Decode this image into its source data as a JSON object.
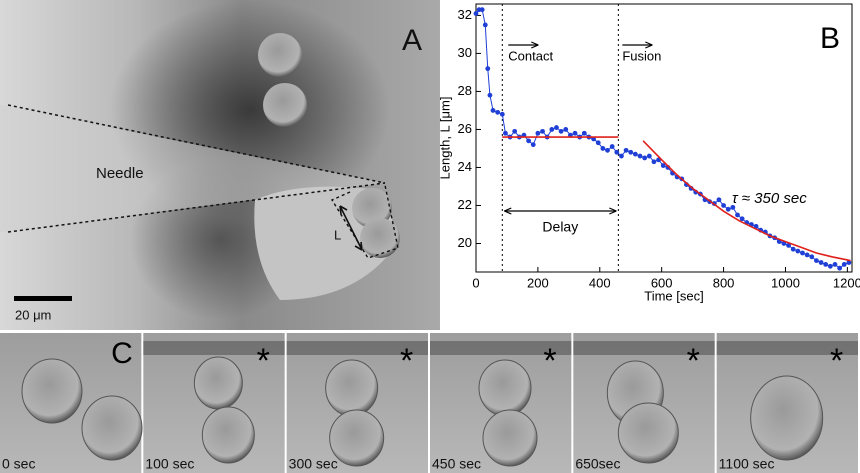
{
  "panel_a": {
    "label": "A",
    "needle_label": "Needle",
    "length_label": "L",
    "scale_bar": "20 μm"
  },
  "chart_data": {
    "type": "scatter",
    "label": "B",
    "xlabel": "Time [sec]",
    "ylabel": "Length, L [μm]",
    "xlim": [
      0,
      1215
    ],
    "ylim": [
      18.5,
      32.6
    ],
    "xticks": [
      0,
      200,
      400,
      600,
      800,
      1000,
      1200
    ],
    "yticks": [
      20,
      22,
      24,
      26,
      28,
      30,
      32
    ],
    "vlines": [
      85,
      460
    ],
    "contact_label": "Contact",
    "fusion_label": "Fusion",
    "delay_label": "Delay",
    "tau_label": "τ ≈ 350 sec",
    "series": [
      {
        "color": "#1f3fd6",
        "markers": true,
        "x": [
          0,
          10,
          20,
          30,
          38,
          45,
          55,
          70,
          85,
          95,
          110,
          125,
          140,
          155,
          170,
          185,
          200,
          215,
          230,
          245,
          260,
          275,
          290,
          305,
          320,
          335,
          350,
          365,
          380,
          395,
          410,
          425,
          440,
          455,
          470,
          485,
          500,
          515,
          530,
          545,
          560,
          575,
          590,
          605,
          620,
          635,
          650,
          665,
          680,
          695,
          710,
          725,
          740,
          755,
          770,
          785,
          800,
          815,
          830,
          845,
          860,
          875,
          890,
          905,
          920,
          935,
          950,
          965,
          980,
          995,
          1010,
          1025,
          1040,
          1055,
          1070,
          1085,
          1100,
          1115,
          1130,
          1145,
          1160,
          1175,
          1190,
          1205
        ],
        "values": [
          32.1,
          32.3,
          32.3,
          31.5,
          29.2,
          27.8,
          27.0,
          26.9,
          26.8,
          25.8,
          25.6,
          25.9,
          25.6,
          25.7,
          25.4,
          25.2,
          25.8,
          25.9,
          25.6,
          26.0,
          26.1,
          25.9,
          26.0,
          25.7,
          25.8,
          25.6,
          25.8,
          25.6,
          25.5,
          25.3,
          25.0,
          24.9,
          25.1,
          24.8,
          24.6,
          24.9,
          24.8,
          24.7,
          24.6,
          24.5,
          24.6,
          24.3,
          24.4,
          24.1,
          24.0,
          23.7,
          23.5,
          23.4,
          23.1,
          22.9,
          22.7,
          22.6,
          22.3,
          22.2,
          22.1,
          22.3,
          22.0,
          21.8,
          21.9,
          21.5,
          21.3,
          21.1,
          21.0,
          20.9,
          20.7,
          20.6,
          20.4,
          20.3,
          20.1,
          20.0,
          19.9,
          19.7,
          19.6,
          19.5,
          19.4,
          19.3,
          19.1,
          19.0,
          18.9,
          18.8,
          18.9,
          18.7,
          18.9,
          19.0
        ]
      },
      {
        "color": "#e0201b",
        "markers": false,
        "x": [
          85,
          460
        ],
        "values": [
          25.6,
          25.6
        ]
      },
      {
        "color": "#e0201b",
        "markers": false,
        "x": [
          540,
          600,
          650,
          700,
          750,
          800,
          850,
          900,
          950,
          1000,
          1050,
          1100,
          1150,
          1210
        ],
        "values": [
          25.4,
          24.4,
          23.6,
          22.9,
          22.3,
          21.7,
          21.2,
          20.8,
          20.4,
          20.1,
          19.8,
          19.5,
          19.3,
          19.1
        ]
      }
    ]
  },
  "panel_c": {
    "label": "C",
    "frames": [
      {
        "time": "0 sec"
      },
      {
        "time": "100 sec",
        "marker": "*"
      },
      {
        "time": "300 sec",
        "marker": "*"
      },
      {
        "time": "450 sec",
        "marker": "*"
      },
      {
        "time": "650sec",
        "marker": "*"
      },
      {
        "time": "1100 sec",
        "marker": "*"
      }
    ]
  }
}
